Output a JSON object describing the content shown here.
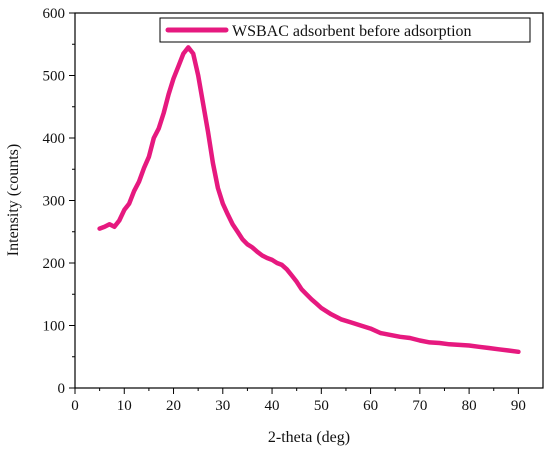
{
  "chart_data": {
    "type": "line",
    "title": "",
    "xlabel": "2-theta (deg)",
    "ylabel": "Intensity (counts)",
    "xlim": [
      0,
      95
    ],
    "ylim": [
      0,
      600
    ],
    "x_ticks": [
      0,
      10,
      20,
      30,
      40,
      50,
      60,
      70,
      80,
      90
    ],
    "y_ticks": [
      0,
      100,
      200,
      300,
      400,
      500,
      600
    ],
    "grid": false,
    "legend_position": "top-right",
    "series": [
      {
        "name": "WSBAC adsorbent before adsorption",
        "color": "#e6197f",
        "x": [
          5,
          6,
          7,
          8,
          9,
          10,
          11,
          12,
          13,
          14,
          15,
          16,
          17,
          18,
          19,
          20,
          21,
          22,
          23,
          24,
          25,
          26,
          27,
          28,
          29,
          30,
          31,
          32,
          33,
          34,
          35,
          36,
          37,
          38,
          39,
          40,
          41,
          42,
          43,
          44,
          45,
          46,
          47,
          48,
          49,
          50,
          52,
          54,
          56,
          58,
          60,
          62,
          64,
          66,
          68,
          70,
          72,
          74,
          76,
          78,
          80,
          82,
          84,
          86,
          88,
          90
        ],
        "y": [
          255,
          258,
          262,
          258,
          268,
          285,
          295,
          315,
          330,
          352,
          370,
          400,
          415,
          440,
          470,
          495,
          515,
          535,
          545,
          535,
          500,
          455,
          410,
          360,
          320,
          295,
          278,
          262,
          250,
          238,
          230,
          225,
          218,
          212,
          208,
          205,
          200,
          197,
          190,
          180,
          170,
          158,
          150,
          142,
          135,
          128,
          118,
          110,
          105,
          100,
          95,
          88,
          85,
          82,
          80,
          76,
          73,
          72,
          70,
          69,
          68,
          66,
          64,
          62,
          60,
          58
        ]
      }
    ]
  }
}
